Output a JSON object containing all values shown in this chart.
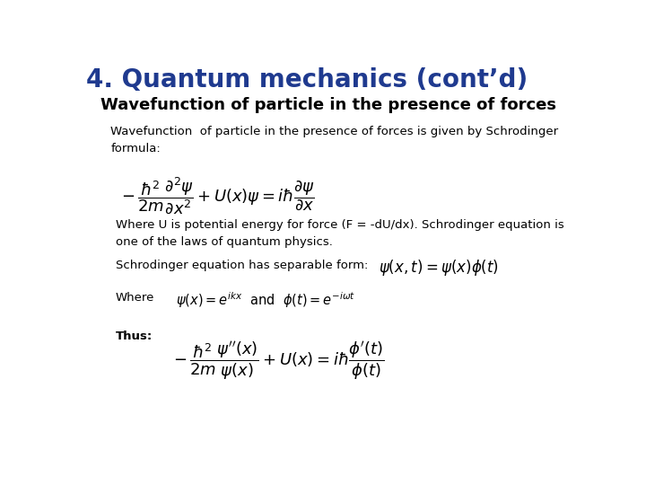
{
  "bg_color": "#ffffff",
  "title": "4. Quantum mechanics (cont’d)",
  "title_color": "#1f3a8f",
  "subtitle": "Wavefunction of particle in the presence of forces",
  "subtitle_color": "#000000",
  "body_text_1": "Wavefunction  of particle in the presence of forces is given by Schrodinger\nformula:",
  "body_text_2": "Where U is potential energy for force (F = -dU/dx). Schrodinger equation is\none of the laws of quantum physics.",
  "sep_text": "Schrodinger equation has separable form:",
  "where_label": "Where",
  "thus_label": "Thus:",
  "formula_1": "$-\\,\\dfrac{\\hbar^2}{2m}\\dfrac{\\partial^2\\psi}{\\partial x^2}+U(x)\\psi = i\\hbar\\dfrac{\\partial\\psi}{\\partial x}$",
  "formula_sep": "$\\psi(x,t) = \\psi(x)\\phi(t)$",
  "formula_where": "$\\psi(x) = e^{ikx}\\ \\ \\mathrm{and}\\ \\ \\phi(t) = e^{-i\\omega t}$",
  "formula_thus": "$-\\,\\dfrac{\\hbar^2}{2m}\\dfrac{\\psi''(x)}{\\psi(x)}+U(x) = i\\hbar\\dfrac{\\phi'(t)}{\\phi(t)}$"
}
